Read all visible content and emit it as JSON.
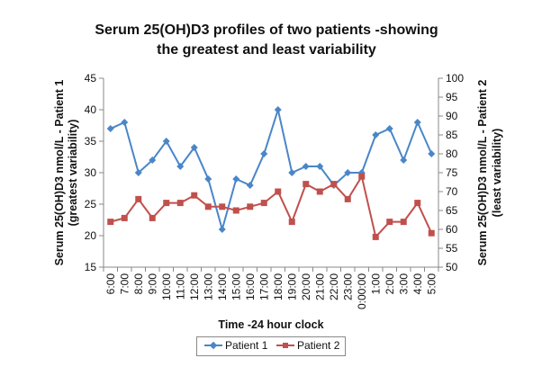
{
  "chart_data": {
    "type": "line",
    "title_line1": "Serum 25(OH)D3 profiles of two patients -showing",
    "title_line2": "the greatest and least   variability",
    "xlabel": "Time -24 hour clock",
    "ylabel_left_line1": "Serum 25(OH)D3 nmol/L - Patient 1",
    "ylabel_left_line2": "(greatest variability)",
    "ylabel_right_line1": "Serum 25(OH)D3 nmol/L - Patient 2",
    "ylabel_right_line2": "(least variability)",
    "categories": [
      "6:00",
      "7:00",
      "8:00",
      "9:00",
      "10:00",
      "11:00",
      "12:00",
      "13:00",
      "14:00",
      "15:00",
      "16:00",
      "17:00",
      "18:00",
      "19:00",
      "20:00",
      "21:00",
      "22:00",
      "23:00",
      "0:00:00",
      "1:00",
      "2:00",
      "3:00",
      "4:00",
      "5:00"
    ],
    "y_left": {
      "min": 15,
      "max": 45,
      "step": 5
    },
    "y_right": {
      "min": 50,
      "max": 100,
      "step": 5
    },
    "grid": false,
    "legend_position": "bottom",
    "series": [
      {
        "name": "Patient 1",
        "axis": "left",
        "color": "#4a86c8",
        "marker": "diamond",
        "values": [
          37,
          38,
          30,
          32,
          35,
          31,
          34,
          29,
          21,
          29,
          28,
          33,
          40,
          30,
          31,
          31,
          28,
          30,
          30,
          36,
          37,
          32,
          38,
          33
        ]
      },
      {
        "name": "Patient 2",
        "axis": "right",
        "color": "#c0504d",
        "marker": "square",
        "values": [
          62,
          63,
          68,
          63,
          67,
          67,
          69,
          66,
          66,
          65,
          66,
          67,
          70,
          62,
          72,
          70,
          72,
          68,
          74,
          58,
          62,
          62,
          67,
          59
        ]
      }
    ]
  }
}
